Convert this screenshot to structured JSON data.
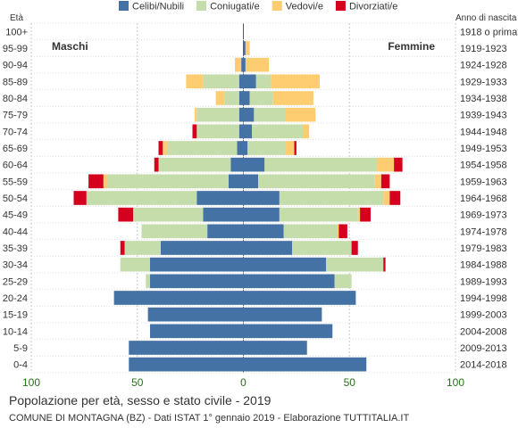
{
  "title": "Popolazione per età, sesso e stato civile - 2019",
  "subtitle": "COMUNE DI MONTAGNA (BZ) - Dati ISTAT 1° gennaio 2019 - Elaborazione TUTTITALIA.IT",
  "chart_data": {
    "type": "bar",
    "orientation": "horizontal-population-pyramid",
    "left_axis_title": "Età",
    "right_axis_title": "Anno di nascita",
    "left_group_label": "Maschi",
    "right_group_label": "Femmine",
    "x_ticks": [
      "100",
      "50",
      "0",
      "50",
      "100"
    ],
    "xlim": [
      -100,
      100
    ],
    "grid": true,
    "legend_position": "top",
    "age_groups": [
      "0-4",
      "5-9",
      "10-14",
      "15-19",
      "20-24",
      "25-29",
      "30-34",
      "35-39",
      "40-44",
      "45-49",
      "50-54",
      "55-59",
      "60-64",
      "65-69",
      "70-74",
      "75-79",
      "80-84",
      "85-89",
      "90-94",
      "95-99",
      "100+"
    ],
    "birth_years": [
      "2014-2018",
      "2009-2013",
      "2004-2008",
      "1999-2003",
      "1994-1998",
      "1989-1993",
      "1984-1988",
      "1979-1983",
      "1974-1978",
      "1969-1973",
      "1964-1968",
      "1959-1963",
      "1954-1958",
      "1949-1953",
      "1944-1948",
      "1939-1943",
      "1934-1938",
      "1929-1933",
      "1924-1928",
      "1919-1923",
      "1918 o prima"
    ],
    "series": [
      {
        "name": "Celibi/Nubili",
        "color": "#4472a5",
        "male": [
          54,
          54,
          44,
          45,
          61,
          44,
          44,
          39,
          17,
          19,
          22,
          7,
          6,
          3,
          2,
          2,
          2,
          2,
          1,
          0,
          0
        ],
        "female": [
          58,
          30,
          42,
          37,
          53,
          43,
          39,
          23,
          19,
          17,
          17,
          7,
          10,
          2,
          4,
          5,
          3,
          6,
          1,
          1,
          0
        ]
      },
      {
        "name": "Coniugati/e",
        "color": "#c5ddab",
        "male": [
          0,
          0,
          0,
          0,
          0,
          2,
          14,
          17,
          31,
          33,
          52,
          57,
          34,
          33,
          20,
          20,
          7,
          17,
          0,
          0,
          0
        ],
        "female": [
          0,
          0,
          0,
          0,
          0,
          8,
          27,
          28,
          25,
          37,
          49,
          55,
          53,
          18,
          24,
          15,
          11,
          7,
          0,
          0,
          0
        ],
        "_note": ""
      },
      {
        "name": "Vedovi/e",
        "color": "#fecc71",
        "male": [
          0,
          0,
          0,
          0,
          0,
          0,
          0,
          0,
          0,
          0,
          0,
          2,
          0,
          2,
          0,
          1,
          4,
          8,
          3,
          0,
          0
        ],
        "female": [
          0,
          0,
          0,
          0,
          0,
          0,
          0,
          0,
          1,
          1,
          3,
          3,
          8,
          4,
          3,
          14,
          19,
          23,
          11,
          2,
          0
        ]
      },
      {
        "name": "Divorziati/e",
        "color": "#d5001d",
        "male": [
          0,
          0,
          0,
          0,
          0,
          0,
          0,
          2,
          0,
          7,
          6,
          7,
          2,
          2,
          2,
          0,
          0,
          0,
          0,
          0,
          0
        ],
        "female": [
          0,
          0,
          0,
          0,
          0,
          0,
          1,
          3,
          4,
          5,
          5,
          4,
          4,
          1,
          0,
          0,
          0,
          0,
          0,
          0,
          0
        ]
      }
    ]
  }
}
